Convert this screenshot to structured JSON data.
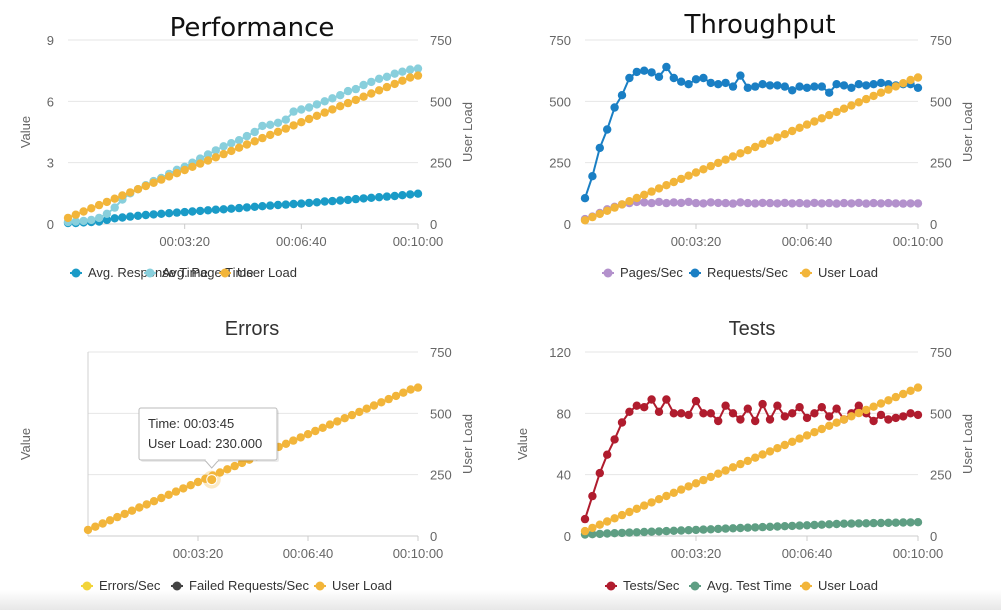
{
  "chart_data": [
    {
      "type": "line",
      "title": "Performance",
      "ylabel": "Value",
      "y2label": "User Load",
      "ylim": [
        0,
        9
      ],
      "y2lim": [
        0,
        750
      ],
      "yticks": [
        "0",
        "3",
        "6",
        "9"
      ],
      "y2ticks": [
        "0",
        "250",
        "500",
        "750"
      ],
      "xticks": [
        "00:03:20",
        "00:06:40",
        "00:10:00"
      ],
      "x_range_seconds": [
        0,
        600
      ],
      "legend_position": "bottom",
      "series": [
        {
          "name": "Avg. Response Time",
          "axis": "left",
          "color": "#1a9bc7",
          "values": [
            0.05,
            0.05,
            0.08,
            0.1,
            0.12,
            0.2,
            0.28,
            0.32,
            0.36,
            0.4,
            0.44,
            0.47,
            0.5,
            0.53,
            0.56,
            0.58,
            0.61,
            0.64,
            0.67,
            0.7,
            0.72,
            0.75,
            0.78,
            0.81,
            0.84,
            0.87,
            0.9,
            0.93,
            0.95,
            0.98,
            1.0,
            1.03,
            1.06,
            1.1,
            1.12,
            1.15,
            1.18,
            1.22,
            1.25,
            1.28,
            1.31,
            1.34,
            1.37,
            1.41,
            1.45,
            1.48
          ]
        },
        {
          "name": "Avg. Page Time",
          "axis": "left",
          "color": "#88cfdc",
          "values": [
            0.1,
            0.12,
            0.15,
            0.2,
            0.3,
            0.5,
            0.8,
            1.2,
            1.5,
            1.7,
            1.9,
            2.1,
            2.25,
            2.45,
            2.65,
            2.8,
            3.0,
            3.2,
            3.4,
            3.6,
            3.8,
            3.95,
            4.1,
            4.3,
            4.5,
            4.8,
            4.85,
            4.95,
            5.1,
            5.5,
            5.6,
            5.7,
            5.85,
            6.0,
            6.15,
            6.3,
            6.5,
            6.6,
            6.8,
            6.95,
            7.1,
            7.2,
            7.35,
            7.45,
            7.55,
            7.6
          ]
        },
        {
          "name": "User Load",
          "axis": "right",
          "color": "#f2b53a",
          "values": [
            25,
            38,
            51,
            64,
            77,
            90,
            103,
            116,
            129,
            142,
            155,
            168,
            181,
            194,
            207,
            220,
            233,
            246,
            259,
            272,
            285,
            298,
            311,
            324,
            337,
            350,
            363,
            376,
            389,
            402,
            415,
            428,
            441,
            454,
            467,
            480,
            493,
            506,
            519,
            532,
            545,
            558,
            571,
            584,
            597,
            605
          ]
        }
      ]
    },
    {
      "type": "line",
      "title": "Throughput",
      "ylim": [
        0,
        750
      ],
      "y2label": "User Load",
      "y2lim": [
        0,
        750
      ],
      "yticks": [
        "0",
        "250",
        "500",
        "750"
      ],
      "y2ticks": [
        "0",
        "250",
        "500",
        "750"
      ],
      "xticks": [
        "00:03:20",
        "00:06:40",
        "00:10:00"
      ],
      "x_range_seconds": [
        0,
        600
      ],
      "legend_position": "bottom",
      "series": [
        {
          "name": "Pages/Sec",
          "axis": "left",
          "color": "#b391cc",
          "values": [
            20,
            30,
            45,
            60,
            70,
            80,
            85,
            90,
            88,
            85,
            90,
            85,
            88,
            86,
            90,
            85,
            84,
            88,
            86,
            85,
            83,
            88,
            85,
            84,
            86,
            85,
            84,
            86,
            84,
            85,
            83,
            86,
            84,
            85,
            83,
            85,
            84,
            86,
            83,
            85,
            84,
            85,
            84,
            83,
            84,
            84
          ]
        },
        {
          "name": "Requests/Sec",
          "axis": "left",
          "color": "#1a7fc4",
          "values": [
            105,
            195,
            310,
            385,
            475,
            525,
            595,
            620,
            625,
            618,
            600,
            640,
            595,
            580,
            570,
            590,
            595,
            575,
            570,
            575,
            560,
            605,
            555,
            560,
            570,
            565,
            565,
            560,
            545,
            560,
            555,
            560,
            560,
            535,
            570,
            565,
            555,
            570,
            565,
            570,
            575,
            570,
            565,
            570,
            570,
            555
          ]
        },
        {
          "name": "User Load",
          "axis": "right",
          "color": "#f2b53a",
          "values": [
            15,
            28,
            41,
            54,
            67,
            80,
            93,
            106,
            119,
            132,
            145,
            158,
            171,
            184,
            197,
            210,
            223,
            236,
            249,
            262,
            275,
            288,
            301,
            314,
            327,
            340,
            353,
            366,
            379,
            392,
            405,
            418,
            431,
            444,
            457,
            470,
            483,
            496,
            509,
            522,
            535,
            548,
            561,
            574,
            587,
            597
          ]
        }
      ]
    },
    {
      "type": "line",
      "title": "Errors",
      "ylabel": "Value",
      "y2label": "User Load",
      "y2lim": [
        0,
        750
      ],
      "y2ticks": [
        "0",
        "250",
        "500",
        "750"
      ],
      "xticks": [
        "00:03:20",
        "00:06:40",
        "00:10:00"
      ],
      "x_range_seconds": [
        0,
        600
      ],
      "legend_position": "bottom",
      "tooltip": {
        "time_label": "Time: 00:03:45",
        "value_label": "User Load: 230.000",
        "x_seconds": 225,
        "y_value": 230
      },
      "series": [
        {
          "name": "Errors/Sec",
          "axis": "left",
          "color": "#f2d43a",
          "values": []
        },
        {
          "name": "Failed Requests/Sec",
          "axis": "left",
          "color": "#444444",
          "values": []
        },
        {
          "name": "User Load",
          "axis": "right",
          "color": "#f2b53a",
          "values": [
            25,
            38,
            51,
            64,
            77,
            90,
            103,
            116,
            129,
            142,
            155,
            168,
            181,
            194,
            207,
            220,
            233,
            246,
            259,
            272,
            285,
            298,
            311,
            324,
            337,
            350,
            363,
            376,
            389,
            402,
            415,
            428,
            441,
            454,
            467,
            480,
            493,
            506,
            519,
            532,
            545,
            558,
            571,
            584,
            597,
            605
          ]
        }
      ]
    },
    {
      "type": "line",
      "title": "Tests",
      "ylabel": "Value",
      "y2label": "User Load",
      "ylim": [
        0,
        120
      ],
      "y2lim": [
        0,
        750
      ],
      "yticks": [
        "0",
        "40",
        "80",
        "120"
      ],
      "y2ticks": [
        "0",
        "250",
        "500",
        "750"
      ],
      "xticks": [
        "00:03:20",
        "00:06:40",
        "00:10:00"
      ],
      "x_range_seconds": [
        0,
        600
      ],
      "legend_position": "bottom",
      "series": [
        {
          "name": "Tests/Sec",
          "axis": "left",
          "color": "#b01c2e",
          "values": [
            11,
            26,
            41,
            53,
            63,
            74,
            81,
            85,
            84,
            89,
            81,
            89,
            80,
            80,
            79,
            88,
            80,
            80,
            75,
            85,
            80,
            76,
            83,
            75,
            86,
            76,
            85,
            78,
            80,
            84,
            77,
            80,
            84,
            78,
            83,
            76,
            80,
            85,
            80,
            75,
            79,
            76,
            77,
            78,
            80,
            79
          ]
        },
        {
          "name": "Avg. Test Time",
          "axis": "left",
          "color": "#5e9e83",
          "values": [
            1,
            1.2,
            1.4,
            1.6,
            1.8,
            2,
            2.2,
            2.4,
            2.6,
            2.8,
            3,
            3.2,
            3.4,
            3.6,
            3.8,
            4,
            4.2,
            4.4,
            4.6,
            4.8,
            5,
            5.2,
            5.4,
            5.6,
            5.8,
            6,
            6.2,
            6.4,
            6.6,
            6.8,
            7,
            7.2,
            7.4,
            7.6,
            7.8,
            8,
            8.1,
            8.2,
            8.3,
            8.4,
            8.5,
            8.6,
            8.7,
            8.8,
            8.9,
            9
          ]
        },
        {
          "name": "User Load",
          "axis": "right",
          "color": "#f2b53a",
          "values": [
            20,
            33,
            46,
            59,
            72,
            85,
            98,
            111,
            124,
            137,
            150,
            163,
            176,
            189,
            202,
            215,
            228,
            241,
            254,
            267,
            280,
            293,
            306,
            319,
            332,
            345,
            358,
            371,
            384,
            397,
            410,
            423,
            436,
            449,
            462,
            475,
            488,
            501,
            514,
            527,
            540,
            553,
            566,
            579,
            592,
            605
          ]
        }
      ]
    }
  ]
}
